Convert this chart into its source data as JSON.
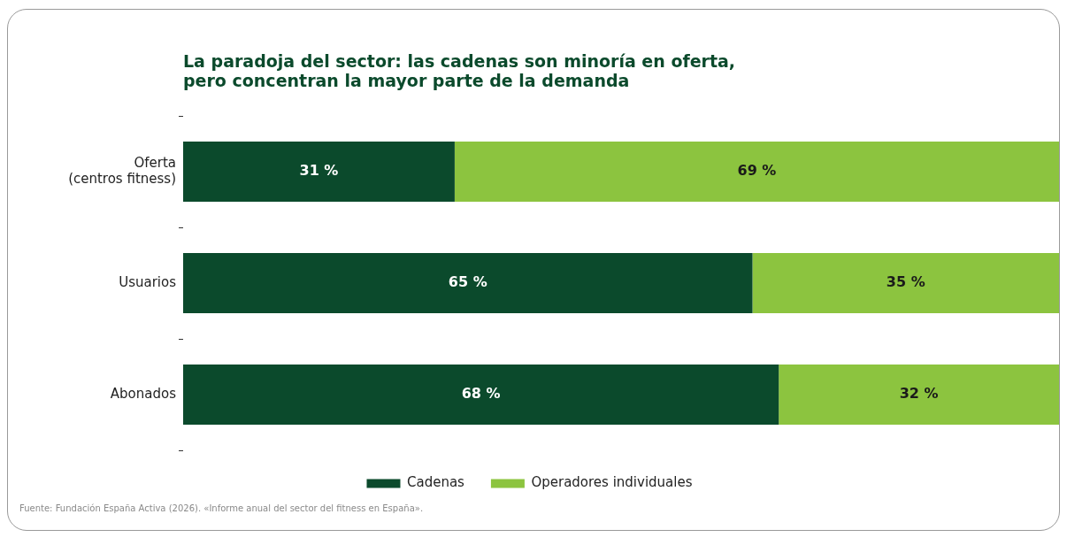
{
  "chart_data": {
    "type": "bar",
    "orientation": "horizontal",
    "stacked": true,
    "title": "La paradoja del sector: las cadenas son minoría en oferta,\npero concentran la mayor parte de la demanda",
    "categories": [
      "Oferta\n(centros fitness)",
      "Usuarios",
      "Abonados"
    ],
    "series": [
      {
        "name": "Cadenas",
        "color": "#0b4a2c",
        "values": [
          31,
          65,
          68
        ],
        "value_labels": [
          "31 %",
          "65 %",
          "68 %"
        ]
      },
      {
        "name": "Operadores individuales",
        "color": "#8cc43f",
        "values": [
          69,
          35,
          32
        ],
        "value_labels": [
          "69 %",
          "35 %",
          "32 %"
        ]
      }
    ],
    "xlim": [
      0,
      100
    ],
    "tick_labels": "y",
    "grid": false,
    "legend": "bottom",
    "annotations": [
      "Fuente: Fundación España Activa (2026). «Informe anual del sector del fitness en España»."
    ]
  }
}
